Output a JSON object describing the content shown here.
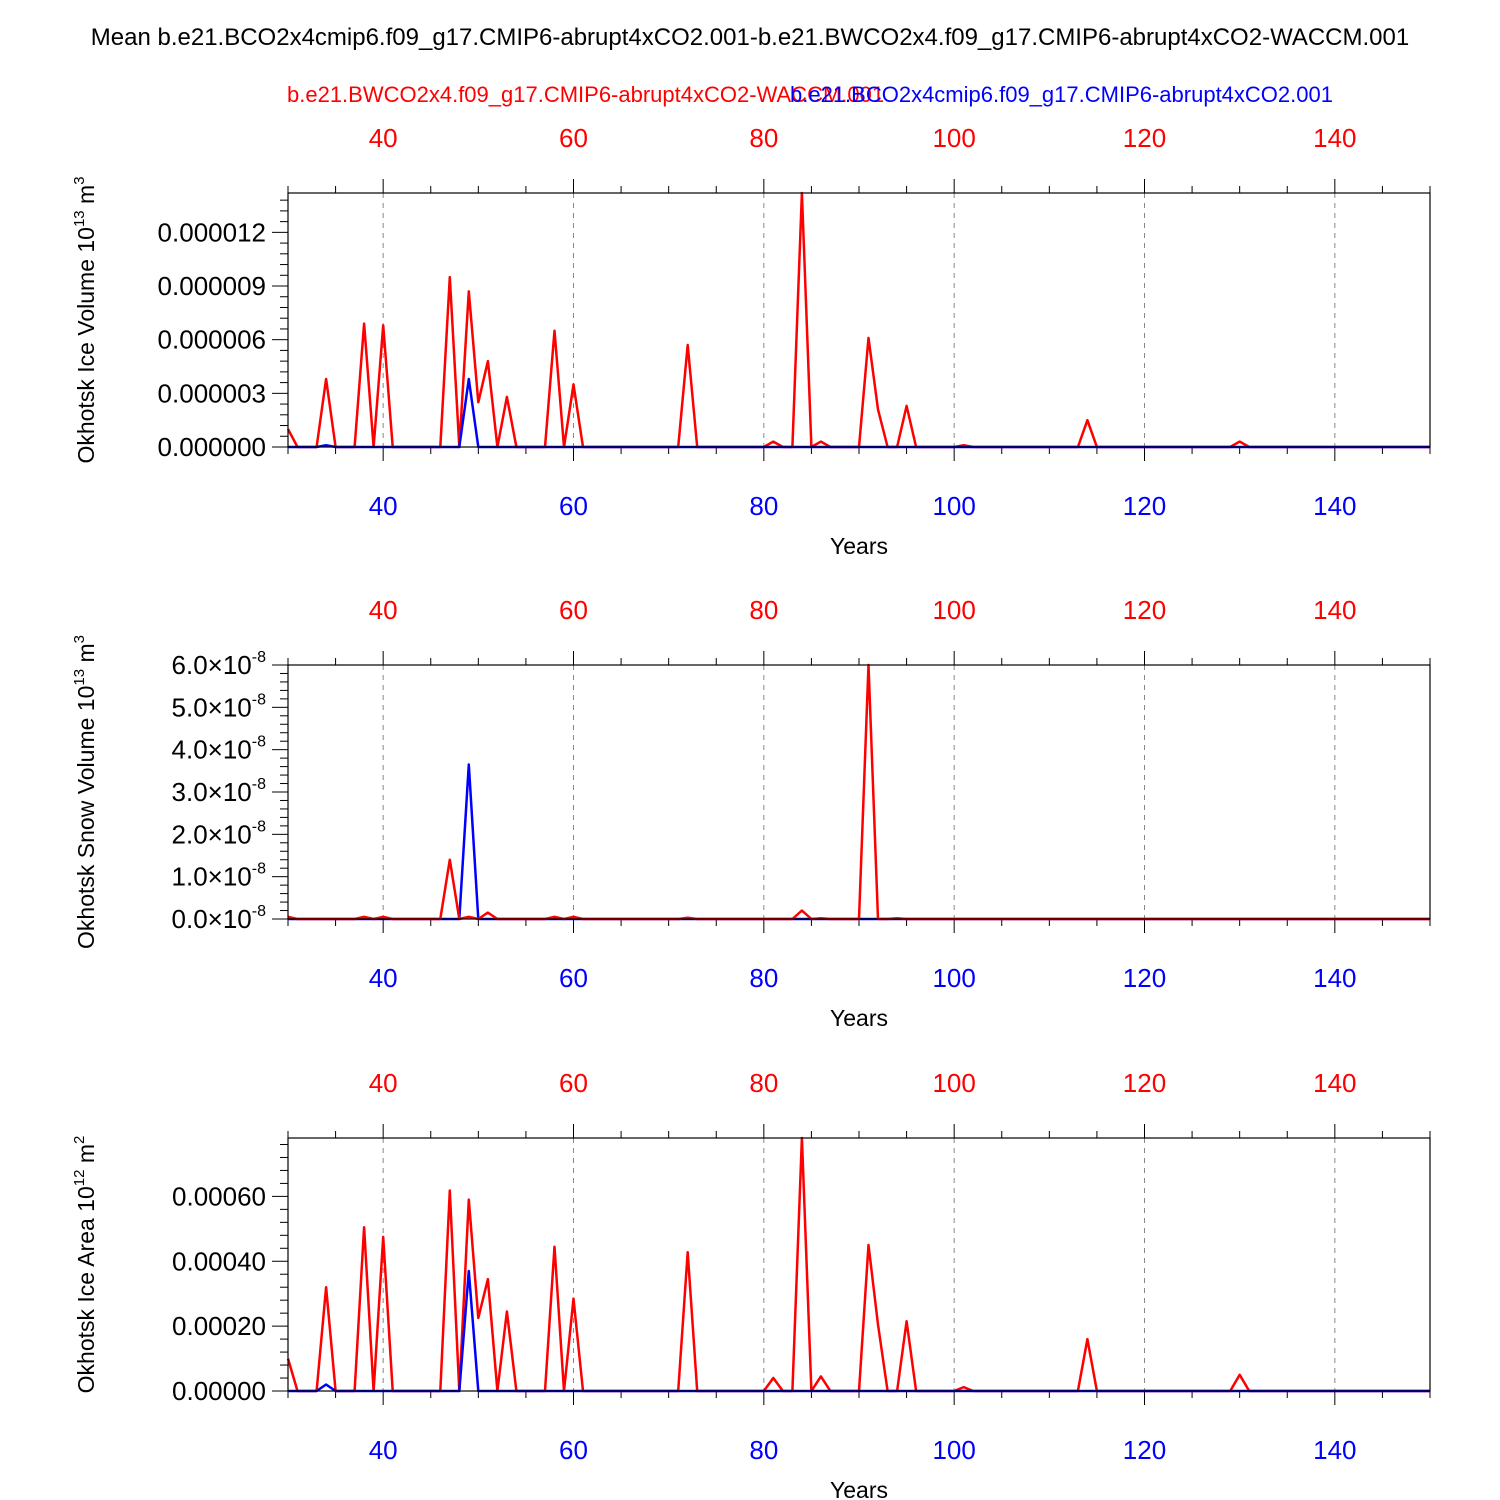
{
  "figure": {
    "title": "Mean b.e21.BCO2x4cmip6.f09_g17.CMIP6-abrupt4xCO2.001-b.e21.BWCO2x4.f09_g17.CMIP6-abrupt4xCO2-WACCM.001",
    "legend": {
      "red_label": "b.e21.BWCO2x4.f09_g17.CMIP6-abrupt4xCO2-WACCM.001",
      "blue_label": "b.e21.BCO2x4cmip6.f09_g17.CMIP6-abrupt4xCO2.001"
    },
    "colors": {
      "red": "#ff0000",
      "blue": "#0000ff",
      "axis": "#000000",
      "grid": "#888888"
    }
  },
  "chart_data": [
    {
      "type": "line",
      "ylabel": "Okhotsk Ice Volume",
      "yunit": "10",
      "yunit_exp": "13",
      "yunit_tail": " m",
      "yunit_tail_exp": "3",
      "xlabel": "Years",
      "xlim": [
        30,
        150
      ],
      "ylim": [
        0,
        1.42e-05
      ],
      "xticks": [
        40,
        60,
        80,
        100,
        120,
        140
      ],
      "yticks": [
        {
          "v": 0,
          "label": "0.000000"
        },
        {
          "v": 3e-06,
          "label": "0.000003"
        },
        {
          "v": 6e-06,
          "label": "0.000006"
        },
        {
          "v": 9e-06,
          "label": "0.000009"
        },
        {
          "v": 1.2e-05,
          "label": "0.000012"
        }
      ],
      "grid": "vertical-dashed",
      "series": [
        {
          "color": "red",
          "x": [
            30,
            31,
            32,
            33,
            34,
            35,
            36,
            37,
            38,
            39,
            40,
            41,
            42,
            43,
            44,
            45,
            46,
            47,
            48,
            49,
            50,
            51,
            52,
            53,
            54,
            55,
            56,
            57,
            58,
            59,
            60,
            61,
            62,
            63,
            64,
            65,
            66,
            67,
            68,
            69,
            70,
            71,
            72,
            73,
            74,
            75,
            76,
            77,
            78,
            79,
            80,
            81,
            82,
            83,
            84,
            85,
            86,
            87,
            88,
            89,
            90,
            91,
            92,
            93,
            94,
            95,
            96,
            97,
            98,
            99,
            100,
            101,
            102,
            103,
            104,
            105,
            106,
            107,
            108,
            109,
            110,
            111,
            112,
            113,
            114,
            115,
            116,
            117,
            118,
            119,
            120,
            121,
            122,
            123,
            124,
            125,
            126,
            127,
            128,
            129,
            130,
            131,
            132,
            133,
            134,
            135,
            136,
            137,
            138,
            139,
            140,
            141,
            142,
            143,
            144,
            145,
            146,
            147,
            148,
            149,
            150
          ],
          "y": [
            1e-06,
            0,
            0,
            0,
            3.8e-06,
            0,
            0,
            0,
            6.9e-06,
            0,
            6.8e-06,
            0,
            0,
            0,
            0,
            0,
            0,
            9.5e-06,
            0,
            8.7e-06,
            2.5e-06,
            4.8e-06,
            0,
            2.8e-06,
            0,
            0,
            0,
            0,
            6.5e-06,
            0,
            3.5e-06,
            0,
            0,
            0,
            0,
            0,
            0,
            0,
            0,
            0,
            0,
            0,
            5.7e-06,
            0,
            0,
            0,
            0,
            0,
            0,
            0,
            0,
            3e-07,
            0,
            0,
            1.43e-05,
            0,
            3e-07,
            0,
            0,
            0,
            0,
            6.1e-06,
            2.1e-06,
            0,
            0,
            2.3e-06,
            0,
            0,
            0,
            0,
            0,
            1e-07,
            0,
            0,
            0,
            0,
            0,
            0,
            0,
            0,
            0,
            0,
            0,
            0,
            1.5e-06,
            0,
            0,
            0,
            0,
            0,
            0,
            0,
            0,
            0,
            0,
            0,
            0,
            0,
            0,
            0,
            3e-07,
            0,
            0,
            0,
            0,
            0,
            0,
            0,
            0,
            0,
            0,
            0,
            0,
            0,
            0,
            0,
            0,
            0,
            0,
            0,
            0
          ]
        },
        {
          "color": "blue",
          "x": [
            30,
            32,
            33,
            34,
            35,
            36,
            48,
            49,
            50,
            51,
            150
          ],
          "y": [
            0,
            0,
            0,
            1e-07,
            0,
            0,
            0,
            3.8e-06,
            0,
            0,
            0
          ]
        }
      ]
    },
    {
      "type": "line",
      "ylabel": "Okhotsk Snow Volume",
      "yunit": "10",
      "yunit_exp": "13",
      "yunit_tail": " m",
      "yunit_tail_exp": "3",
      "xlabel": "Years",
      "xlim": [
        30,
        150
      ],
      "ylim": [
        0,
        6e-08
      ],
      "xticks": [
        40,
        60,
        80,
        100,
        120,
        140
      ],
      "yticks": [
        {
          "v": 0,
          "label": "0.0",
          "exp": "-8"
        },
        {
          "v": 1e-08,
          "label": "1.0",
          "exp": "-8"
        },
        {
          "v": 2e-08,
          "label": "2.0",
          "exp": "-8"
        },
        {
          "v": 3e-08,
          "label": "3.0",
          "exp": "-8"
        },
        {
          "v": 4e-08,
          "label": "4.0",
          "exp": "-8"
        },
        {
          "v": 5e-08,
          "label": "5.0",
          "exp": "-8"
        },
        {
          "v": 6e-08,
          "label": "6.0",
          "exp": "-8"
        }
      ],
      "grid": "vertical-dashed",
      "series": [
        {
          "color": "blue",
          "x": [
            30,
            47,
            48,
            49,
            50,
            51,
            150
          ],
          "y": [
            0,
            0,
            0,
            3.65e-08,
            0,
            0,
            0
          ]
        },
        {
          "color": "red",
          "x": [
            30,
            31,
            32,
            33,
            34,
            35,
            36,
            37,
            38,
            39,
            40,
            41,
            42,
            43,
            44,
            45,
            46,
            47,
            48,
            49,
            50,
            51,
            52,
            53,
            54,
            55,
            56,
            57,
            58,
            59,
            60,
            61,
            62,
            71,
            72,
            73,
            80,
            81,
            82,
            83,
            84,
            85,
            86,
            87,
            88,
            89,
            90,
            91,
            92,
            93,
            94,
            95,
            96,
            150
          ],
          "y": [
            5e-10,
            0,
            0,
            0,
            0,
            0,
            0,
            0,
            5e-10,
            0,
            5e-10,
            0,
            0,
            0,
            0,
            0,
            0,
            1.4e-08,
            0,
            5e-10,
            0,
            1.5e-09,
            0,
            0,
            0,
            0,
            0,
            0,
            5e-10,
            0,
            5e-10,
            0,
            0,
            0,
            3e-10,
            0,
            0,
            0,
            0,
            0,
            2e-09,
            0,
            2e-10,
            0,
            0,
            0,
            0,
            6e-08,
            0,
            0,
            2e-10,
            0,
            0,
            0
          ]
        }
      ]
    },
    {
      "type": "line",
      "ylabel": "Okhotsk Ice Area",
      "yunit": "10",
      "yunit_exp": "12",
      "yunit_tail": " m",
      "yunit_tail_exp": "2",
      "xlabel": "Years",
      "xlim": [
        30,
        150
      ],
      "ylim": [
        0,
        0.00078
      ],
      "xticks": [
        40,
        60,
        80,
        100,
        120,
        140
      ],
      "yticks": [
        {
          "v": 0,
          "label": "0.00000"
        },
        {
          "v": 0.0002,
          "label": "0.00020"
        },
        {
          "v": 0.0004,
          "label": "0.00040"
        },
        {
          "v": 0.0006,
          "label": "0.00060"
        }
      ],
      "grid": "vertical-dashed",
      "series": [
        {
          "color": "red",
          "x": [
            30,
            31,
            32,
            33,
            34,
            35,
            36,
            37,
            38,
            39,
            40,
            41,
            42,
            43,
            44,
            45,
            46,
            47,
            48,
            49,
            50,
            51,
            52,
            53,
            54,
            55,
            56,
            57,
            58,
            59,
            60,
            61,
            62,
            63,
            64,
            65,
            66,
            67,
            68,
            69,
            70,
            71,
            72,
            73,
            74,
            75,
            76,
            77,
            78,
            79,
            80,
            81,
            82,
            83,
            84,
            85,
            86,
            87,
            88,
            89,
            90,
            91,
            92,
            93,
            94,
            95,
            96,
            97,
            98,
            99,
            100,
            101,
            102,
            103,
            104,
            105,
            106,
            107,
            108,
            109,
            110,
            111,
            112,
            113,
            114,
            115,
            116,
            117,
            118,
            119,
            120,
            121,
            122,
            123,
            124,
            125,
            126,
            127,
            128,
            129,
            130,
            131,
            132,
            133,
            134,
            135,
            136,
            137,
            138,
            139,
            140,
            141,
            142,
            143,
            144,
            145,
            146,
            147,
            148,
            149,
            150
          ],
          "y": [
            0.0001,
            0,
            0,
            0,
            0.00032,
            0,
            0,
            0,
            0.000505,
            0,
            0.000475,
            0,
            0,
            0,
            0,
            0,
            0,
            0.000618,
            0,
            0.00059,
            0.000225,
            0.000345,
            0,
            0.000245,
            0,
            0,
            0,
            0,
            0.000445,
            0,
            0.000285,
            0,
            0,
            0,
            0,
            0,
            0,
            0,
            0,
            0,
            0,
            0,
            0.000428,
            0,
            0,
            0,
            0,
            0,
            0,
            0,
            0,
            4e-05,
            0,
            0,
            0.00078,
            0,
            4.5e-05,
            0,
            0,
            0,
            0,
            0.00045,
            0.000205,
            0,
            0,
            0.000215,
            0,
            0,
            0,
            0,
            0,
            1.2e-05,
            0,
            0,
            0,
            0,
            0,
            0,
            0,
            0,
            0,
            0,
            0,
            0,
            0.00016,
            0,
            0,
            0,
            0,
            0,
            0,
            0,
            0,
            0,
            0,
            0,
            0,
            0,
            0,
            0,
            5e-05,
            0,
            0,
            0,
            0,
            0,
            0,
            0,
            0,
            0,
            0,
            0,
            0,
            0,
            0,
            0,
            0,
            0,
            0,
            0,
            0
          ]
        },
        {
          "color": "blue",
          "x": [
            30,
            32,
            33,
            34,
            35,
            36,
            48,
            49,
            50,
            51,
            150
          ],
          "y": [
            0,
            0,
            0,
            2e-05,
            0,
            0,
            0,
            0.00037,
            0,
            0,
            0
          ]
        }
      ]
    }
  ]
}
